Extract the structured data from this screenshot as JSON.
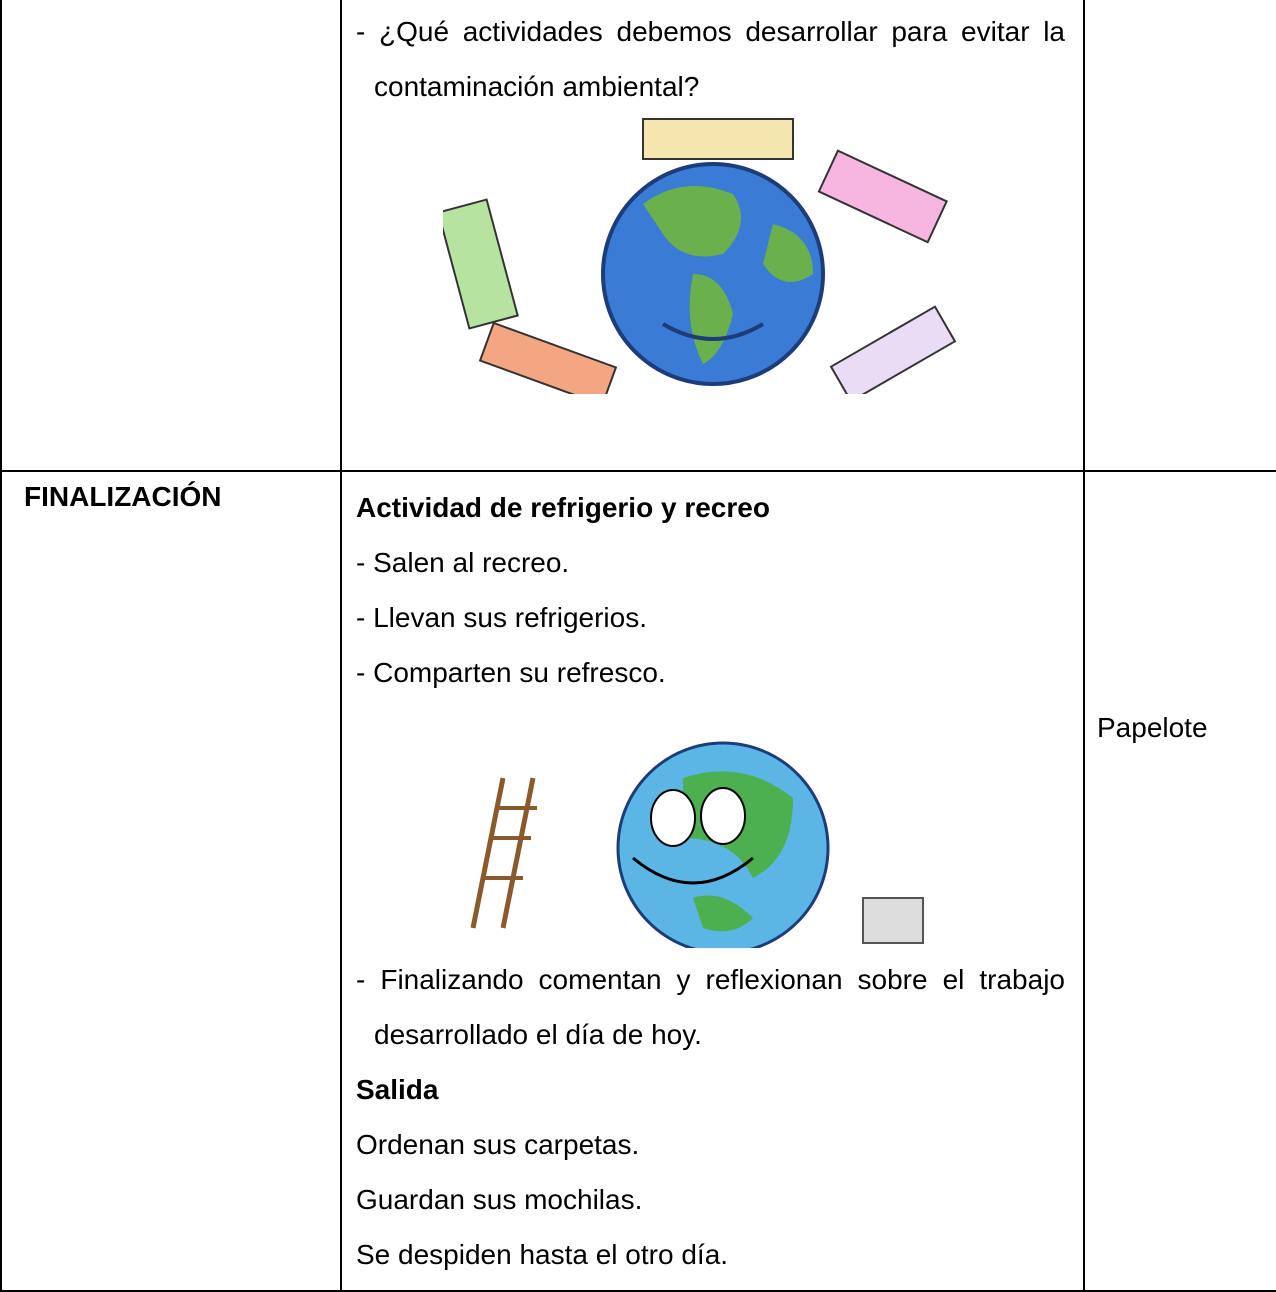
{
  "table": {
    "rows": [
      {
        "content": {
          "items": [
            "- ¿Qué actividades debemos desarrollar para evitar la contaminación ambiental?"
          ]
        }
      },
      {
        "phase": "FINALIZACIÓN",
        "content": {
          "heading": "Actividad de refrigerio y recreo",
          "items": [
            "- Salen al recreo.",
            "- Llevan sus refrigerios.",
            "- Comparten su refresco."
          ],
          "items2": [
            "- Finalizando comentan y reflexionan sobre el trabajo desarrollado el día de hoy."
          ],
          "heading2": "Salida",
          "lines": [
            "Ordenan sus carpetas.",
            "Guardan sus mochilas.",
            "Se despiden hasta el otro día."
          ]
        },
        "materials": "Papelote"
      }
    ]
  }
}
